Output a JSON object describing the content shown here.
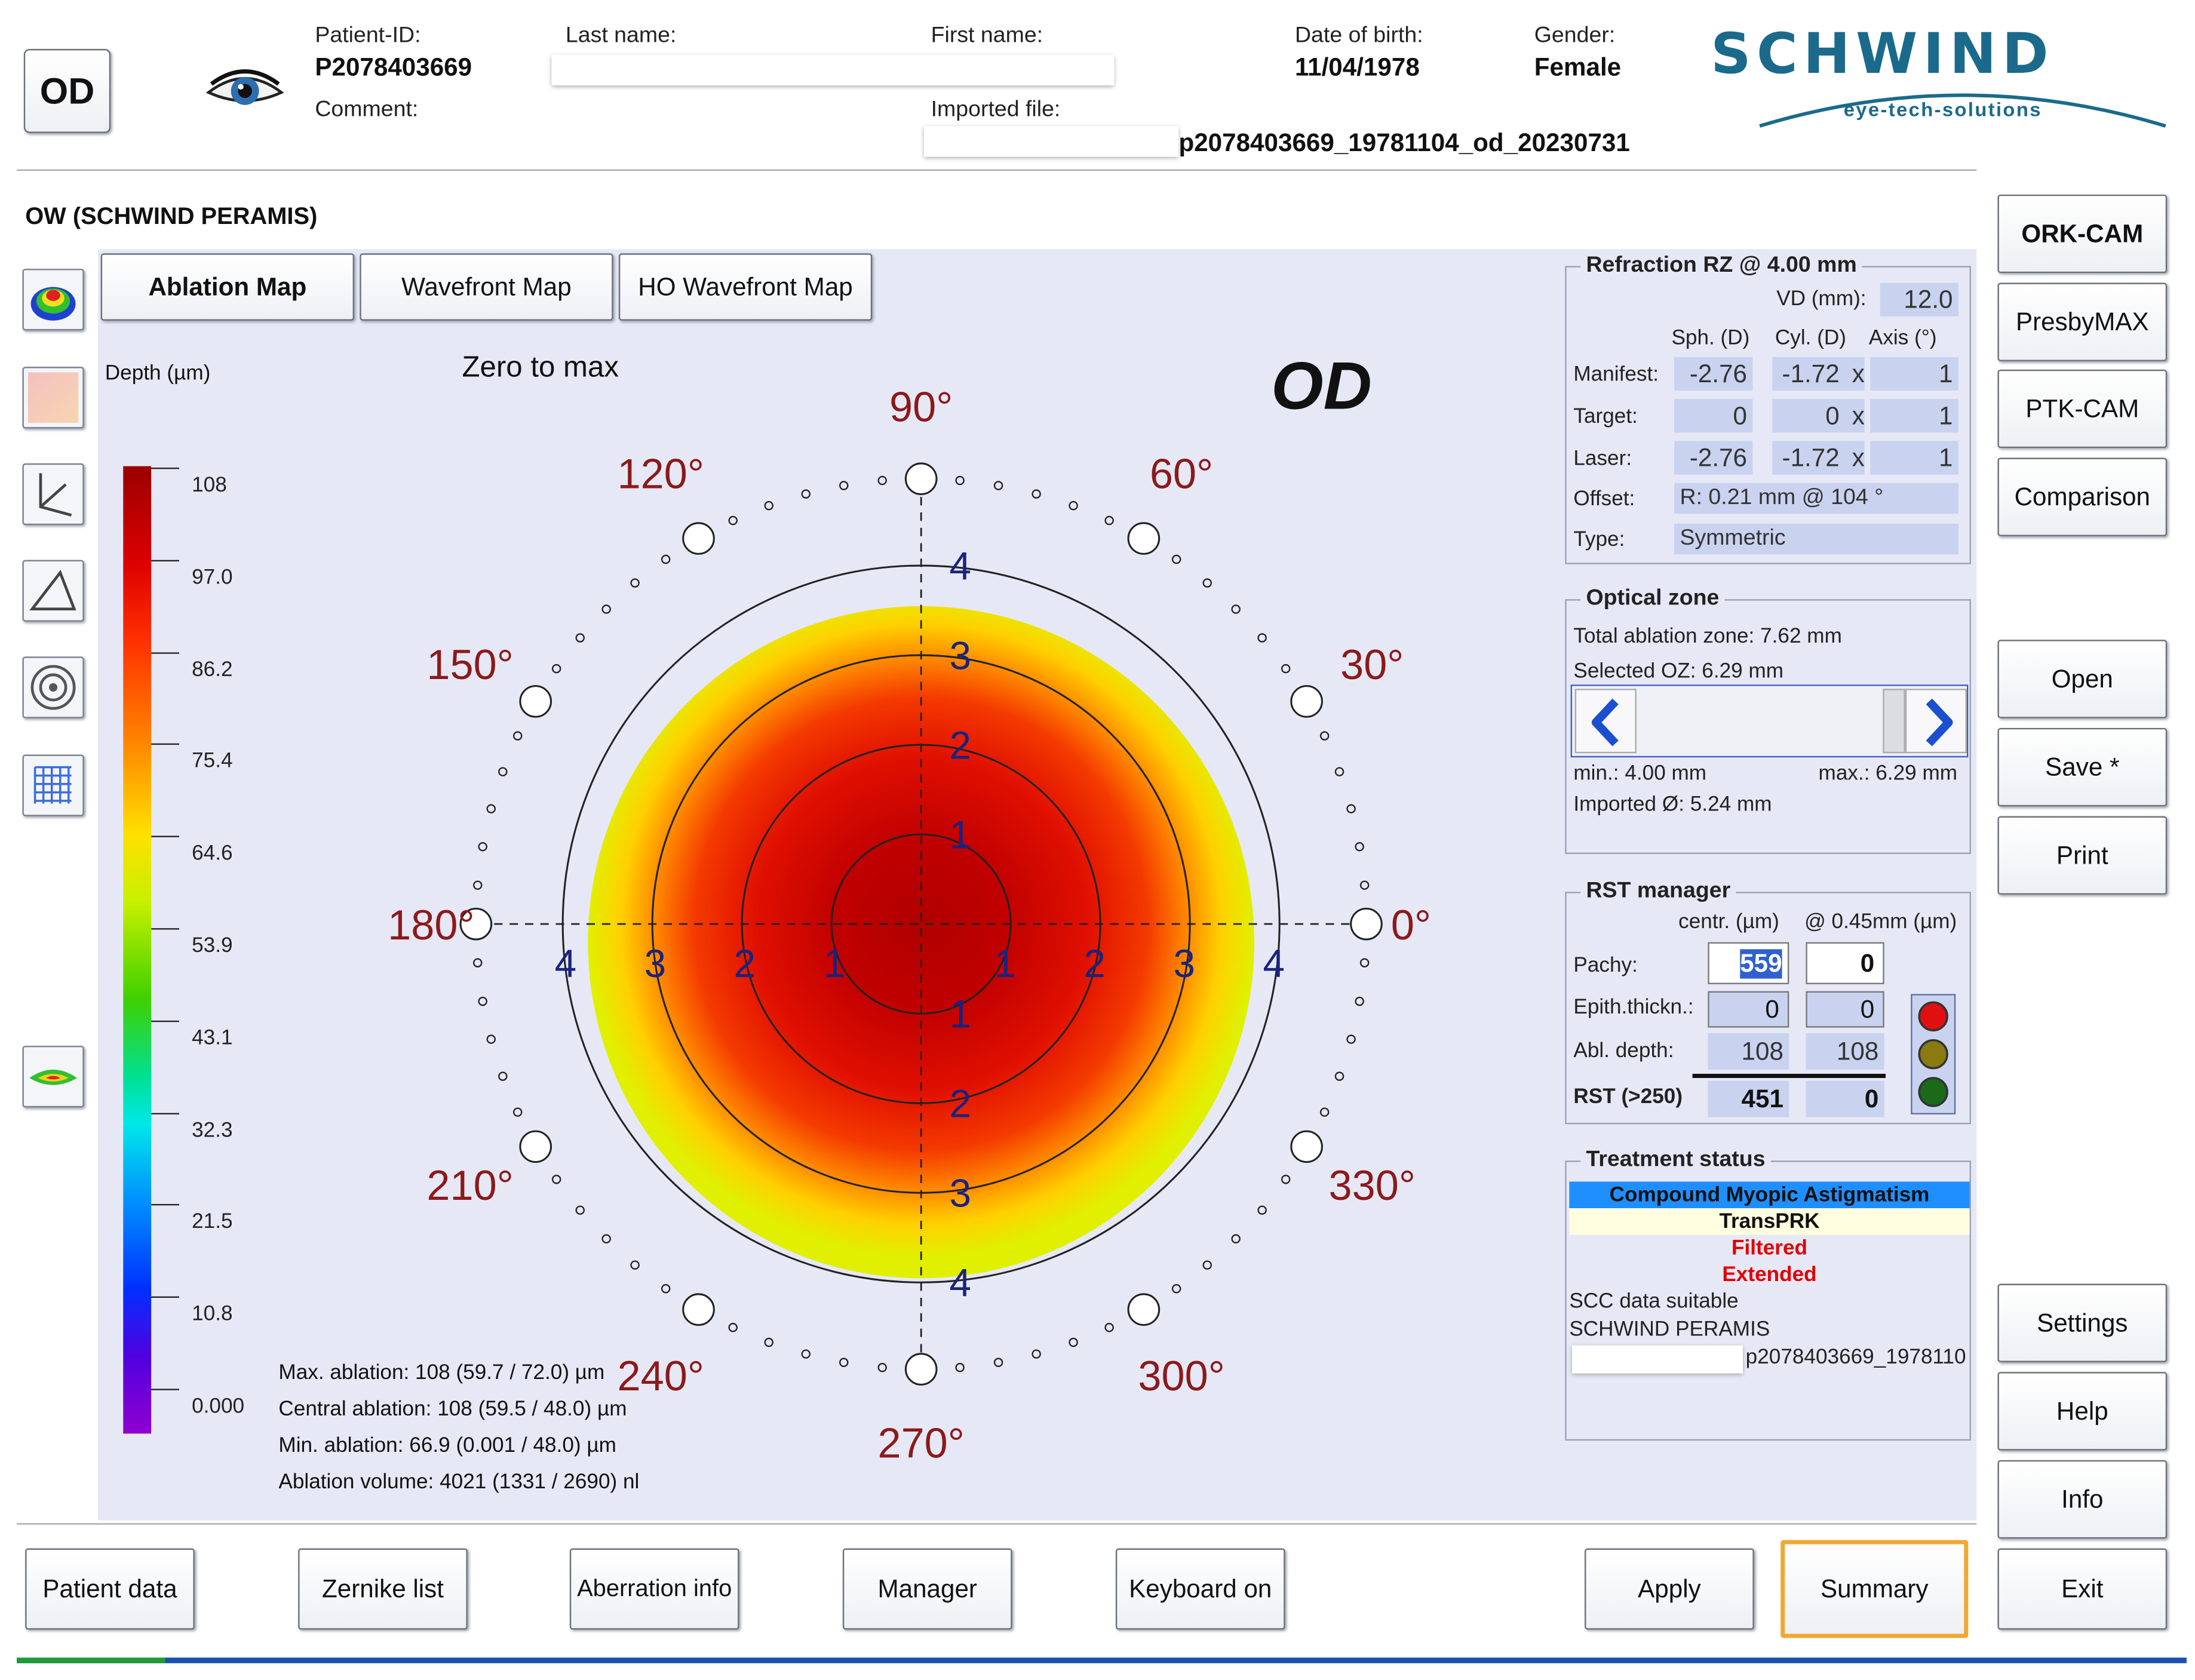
{
  "header": {
    "eye_button": "OD",
    "patient_id_label": "Patient-ID:",
    "patient_id": "P2078403669",
    "comment_label": "Comment:",
    "last_name_label": "Last name:",
    "first_name_label": "First name:",
    "imported_file_label": "Imported file:",
    "imported_file": "p2078403669_19781104_od_20230731",
    "dob_label": "Date of birth:",
    "dob": "11/04/1978",
    "gender_label": "Gender:",
    "gender": "Female",
    "logo_text": "SCHWIND",
    "logo_sub": "eye-tech-solutions"
  },
  "section_title": "OW (SCHWIND PERAMIS)",
  "tabs": [
    "Ablation Map",
    "Wavefront Map",
    "HO Wavefront Map"
  ],
  "map": {
    "scale_title": "Depth (µm)",
    "mode": "Zero to max",
    "eye": "OD",
    "scale_labels": [
      "108",
      "97.0",
      "86.2",
      "75.4",
      "64.6",
      "53.9",
      "43.1",
      "32.3",
      "21.5",
      "10.8",
      "0.000"
    ],
    "angles": [
      "90°",
      "60°",
      "30°",
      "0°",
      "330°",
      "300°",
      "270°",
      "240°",
      "210°",
      "180°",
      "150°",
      "120°"
    ],
    "ring_labels": [
      "1",
      "2",
      "3",
      "4"
    ],
    "stats": [
      "Max. ablation: 108 (59.7 / 72.0) µm",
      "Central ablation: 108 (59.5 / 48.0) µm",
      "Min. ablation: 66.9 (0.001 / 48.0) µm",
      "Ablation volume: 4021 (1331 / 2690) nl"
    ]
  },
  "refraction": {
    "title": "Refraction RZ @ 4.00 mm",
    "vd_label": "VD (mm):",
    "vd": "12.0",
    "col_sph": "Sph. (D)",
    "col_cyl": "Cyl. (D)",
    "col_axis": "Axis (°)",
    "rows": [
      {
        "label": "Manifest:",
        "sph": "-2.76",
        "cyl": "-1.72",
        "axis": "1"
      },
      {
        "label": "Target:",
        "sph": "0",
        "cyl": "0",
        "axis": "1"
      },
      {
        "label": "Laser:",
        "sph": "-2.76",
        "cyl": "-1.72",
        "axis": "1"
      }
    ],
    "x_mark": "x",
    "offset_label": "Offset:",
    "offset": "R: 0.21 mm @ 104 °",
    "type_label": "Type:",
    "type": "Symmetric"
  },
  "optical_zone": {
    "title": "Optical zone",
    "total": "Total ablation zone: 7.62 mm",
    "selected": "Selected OZ: 6.29 mm",
    "slider_fraction": 1.0,
    "min": "min.: 4.00 mm",
    "max": "max.: 6.29 mm",
    "imported": "Imported Ø: 5.24 mm"
  },
  "rst": {
    "title": "RST manager",
    "col_centr": "centr. (µm)",
    "col_045": "@ 0.45mm (µm)",
    "pachy_label": "Pachy:",
    "pachy_centr": "559",
    "pachy_045": "0",
    "epith_label": "Epith.thickn.:",
    "epith_centr": "0",
    "epith_045": "0",
    "abl_label": "Abl. depth:",
    "abl_centr": "108",
    "abl_045": "108",
    "rst_label": "RST (>250)",
    "rst_centr": "451",
    "rst_045": "0"
  },
  "treatment": {
    "title": "Treatment status",
    "line1": "Compound Myopic Astigmatism",
    "line2": "TransPRK",
    "line3": "Filtered",
    "line4": "Extended",
    "line5": "SCC data suitable",
    "line6": "SCHWIND PERAMIS",
    "line7": "p2078403669_1978110"
  },
  "right_buttons": {
    "ork": "ORK-CAM",
    "presby": "PresbyMAX",
    "ptk": "PTK-CAM",
    "comparison": "Comparison",
    "open": "Open",
    "save": "Save *",
    "print": "Print",
    "settings": "Settings",
    "help": "Help",
    "info": "Info",
    "exit": "Exit"
  },
  "bottom_buttons": {
    "patient_data": "Patient data",
    "zernike": "Zernike list",
    "aberration": "Aberration info",
    "manager": "Manager",
    "keyboard": "Keyboard on",
    "apply": "Apply",
    "summary": "Summary"
  },
  "colors": {
    "panel_bg": "#e6e8f6",
    "field_bg": "#c9d3f0",
    "angle_red": "#8b1a1a",
    "ring_blue": "#1a237e",
    "status_blue": "#1f8fff",
    "status_yellow": "#fffde0",
    "status_red": "#e00000"
  }
}
